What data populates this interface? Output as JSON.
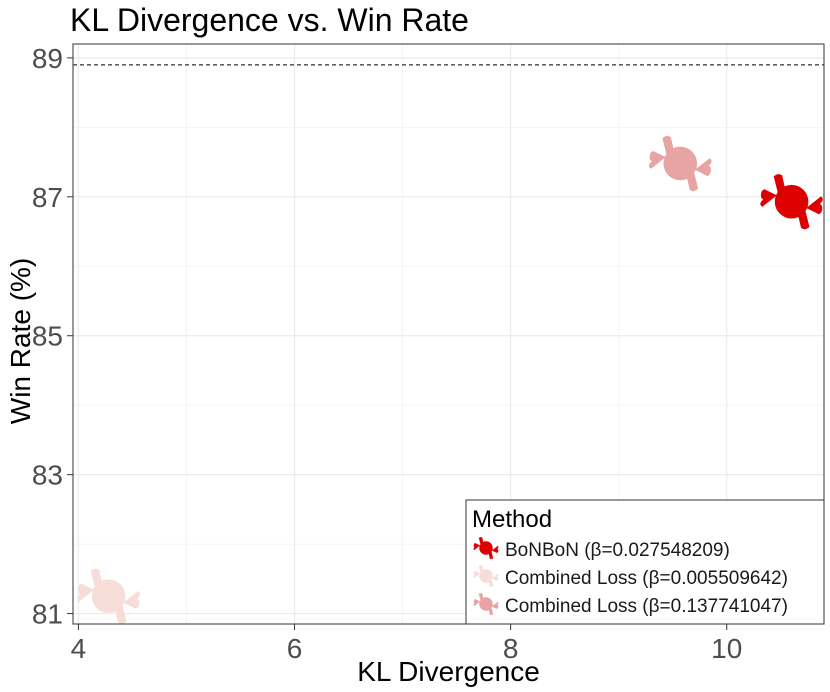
{
  "chart_data": {
    "type": "scatter",
    "title": "KL Divergence vs. Win Rate",
    "xlabel": "KL Divergence",
    "ylabel": "Win Rate (%)",
    "xlim": [
      3.95,
      10.9
    ],
    "ylim": [
      80.85,
      89.2
    ],
    "x_ticks": [
      4,
      6,
      8,
      10
    ],
    "x_tick_labels": [
      "4",
      "6",
      "8",
      "10"
    ],
    "y_ticks": [
      81,
      83,
      85,
      87,
      89
    ],
    "y_tick_labels": [
      "81",
      "83",
      "85",
      "87",
      "89"
    ],
    "grid": true,
    "reference_line": {
      "y": 88.9,
      "style": "dashed"
    },
    "marker": "candy",
    "series": [
      {
        "name": "BoNBoN (β=0.027548209)",
        "color": "#dd0000",
        "x": [
          10.6
        ],
        "y": [
          86.93
        ]
      },
      {
        "name": "Combined Loss (β=0.005509642)",
        "color": "#f6ddd7",
        "x": [
          4.28
        ],
        "y": [
          81.25
        ]
      },
      {
        "name": "Combined Loss (β=0.137741047)",
        "color": "#e8a3a3",
        "x": [
          9.57
        ],
        "y": [
          87.48
        ]
      }
    ],
    "legend": {
      "title": "Method",
      "position": "bottom-right",
      "entries": [
        "BoNBoN (β=0.027548209)",
        "Combined Loss (β=0.005509642)",
        "Combined Loss (β=0.137741047)"
      ]
    }
  }
}
